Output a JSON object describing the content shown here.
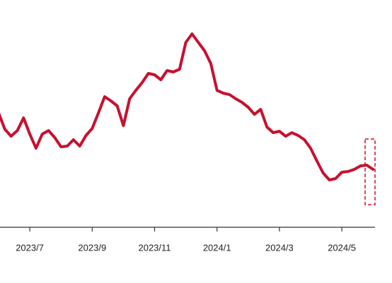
{
  "chart_data": {
    "type": "line",
    "categories": [
      null,
      null,
      null,
      null,
      null,
      "2023/7",
      null,
      null,
      null,
      null,
      null,
      null,
      null,
      null,
      null,
      "2023/9",
      null,
      null,
      null,
      null,
      null,
      null,
      null,
      null,
      null,
      "2023/11",
      null,
      null,
      null,
      null,
      null,
      null,
      null,
      null,
      null,
      "2024/1",
      null,
      null,
      null,
      null,
      null,
      null,
      null,
      null,
      null,
      "2024/3",
      null,
      null,
      null,
      null,
      null,
      null,
      null,
      null,
      null,
      "2024/5",
      null,
      null,
      null,
      null,
      null
    ],
    "series": [
      {
        "color": "#c8102e",
        "values": [
          162,
          139,
          129,
          137,
          155,
          132,
          112,
          132,
          137,
          127,
          114,
          115,
          124,
          115,
          130,
          140,
          162,
          185,
          179,
          172,
          144,
          182,
          194,
          205,
          218,
          216,
          209,
          222,
          220,
          224,
          262,
          274,
          262,
          250,
          232,
          194,
          190,
          188,
          182,
          177,
          170,
          160,
          167,
          142,
          134,
          136,
          129,
          134,
          130,
          124,
          112,
          94,
          77,
          67,
          69,
          78,
          79,
          82,
          87,
          88,
          82
        ]
      }
    ],
    "ylim": [
      0,
      322
    ]
  }
}
